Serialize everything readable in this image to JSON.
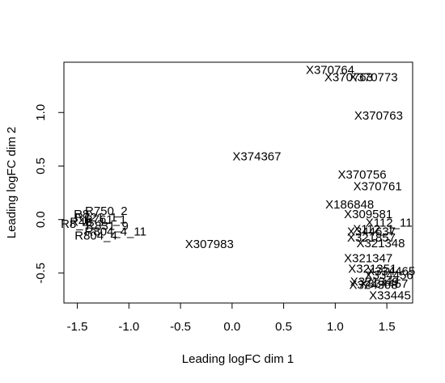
{
  "chart_data": {
    "type": "scatter",
    "title": "",
    "xlabel": "Leading logFC dim 1",
    "ylabel": "Leading logFC dim 2",
    "xlim": [
      -1.63,
      1.75
    ],
    "ylim": [
      -0.78,
      1.47
    ],
    "x_ticks": [
      -1.5,
      -1.0,
      -0.5,
      0.0,
      0.5,
      1.0,
      1.5
    ],
    "x_tick_labels": [
      "-1.5",
      "-1.0",
      "-0.5",
      "0.0",
      "0.5",
      "1.0",
      "1.5"
    ],
    "y_ticks": [
      -0.5,
      0.0,
      0.5,
      1.0
    ],
    "y_tick_labels": [
      "-0.5",
      "0.0",
      "0.5",
      "1.0"
    ],
    "grid": false,
    "legend": "none",
    "color": "#000000",
    "points": [
      {
        "label": "X370764",
        "x": 0.95,
        "y": 1.4
      },
      {
        "label": "X370773",
        "x": 1.37,
        "y": 1.33
      },
      {
        "label": "X370763",
        "x": 1.13,
        "y": 1.33
      },
      {
        "label": "X370763",
        "x": 1.42,
        "y": 0.97
      },
      {
        "label": "X374367",
        "x": 0.24,
        "y": 0.59
      },
      {
        "label": "X370756",
        "x": 1.26,
        "y": 0.42
      },
      {
        "label": "X370761",
        "x": 1.41,
        "y": 0.31
      },
      {
        "label": "X186848",
        "x": 1.14,
        "y": 0.14
      },
      {
        "label": "X309581",
        "x": 1.32,
        "y": 0.05
      },
      {
        "label": "X112_11",
        "x": 1.52,
        "y": -0.03
      },
      {
        "label": "X112_1",
        "x": 1.37,
        "y": -0.09
      },
      {
        "label": "X344637",
        "x": 1.35,
        "y": -0.11
      },
      {
        "label": "X321857",
        "x": 1.35,
        "y": -0.17
      },
      {
        "label": "X321348",
        "x": 1.44,
        "y": -0.22
      },
      {
        "label": "X321347",
        "x": 1.32,
        "y": -0.36
      },
      {
        "label": "X321351",
        "x": 1.36,
        "y": -0.46
      },
      {
        "label": "X334465",
        "x": 1.54,
        "y": -0.48
      },
      {
        "label": "X334456",
        "x": 1.52,
        "y": -0.52
      },
      {
        "label": "X321349",
        "x": 1.38,
        "y": -0.58
      },
      {
        "label": "X334457",
        "x": 1.47,
        "y": -0.6
      },
      {
        "label": "X324308",
        "x": 1.37,
        "y": -0.61
      },
      {
        "label": "X33445",
        "x": 1.53,
        "y": -0.71
      },
      {
        "label": "X307983",
        "x": -0.22,
        "y": -0.23
      },
      {
        "label": "R750_2",
        "x": -1.22,
        "y": 0.08
      },
      {
        "label": "R721_1",
        "x": -1.32,
        "y": 0.02
      },
      {
        "label": "R8",
        "x": -1.46,
        "y": 0.05
      },
      {
        "label": "R761_1",
        "x": -1.23,
        "y": 0.0
      },
      {
        "label": "R48_1",
        "x": -1.4,
        "y": -0.02
      },
      {
        "label": "R8_4",
        "x": -1.52,
        "y": -0.04
      },
      {
        "label": "R831_9",
        "x": -1.21,
        "y": -0.06
      },
      {
        "label": "R804_4_11",
        "x": -1.13,
        "y": -0.11
      },
      {
        "label": "R804_4",
        "x": -1.32,
        "y": -0.15
      }
    ]
  }
}
